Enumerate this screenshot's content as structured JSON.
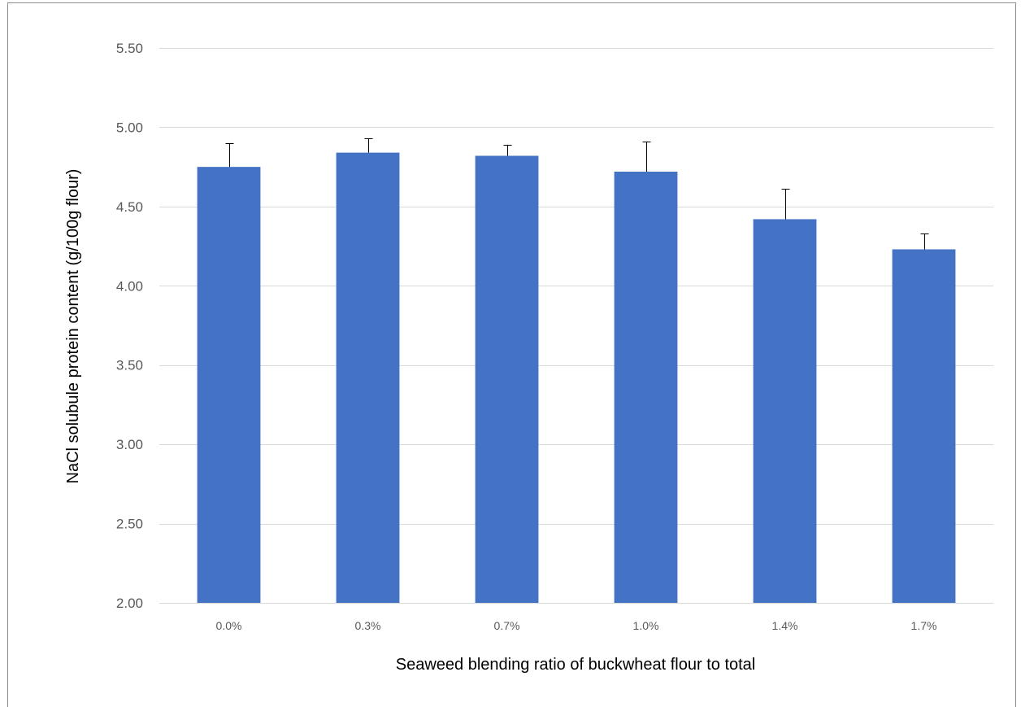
{
  "chart_data": {
    "type": "bar",
    "categories": [
      "0.0%",
      "0.3%",
      "0.7%",
      "1.0%",
      "1.4%",
      "1.7%"
    ],
    "values": [
      4.75,
      4.84,
      4.82,
      4.72,
      4.42,
      4.23
    ],
    "error_plus": [
      0.15,
      0.09,
      0.07,
      0.19,
      0.19,
      0.1
    ],
    "title": "",
    "xlabel": "Seaweed blending ratio of buckwheat flour to total",
    "ylabel": "NaCl solubule protein content  (g/100g flour)",
    "ylim": [
      2.0,
      5.5
    ],
    "yticks": [
      "2.00",
      "2.50",
      "3.00",
      "3.50",
      "4.00",
      "4.50",
      "5.00",
      "5.50"
    ],
    "grid": true,
    "legend": "none",
    "bar_color": "#4472C4",
    "grid_color": "#D9D9D9",
    "error_bar_color": "#000000"
  }
}
